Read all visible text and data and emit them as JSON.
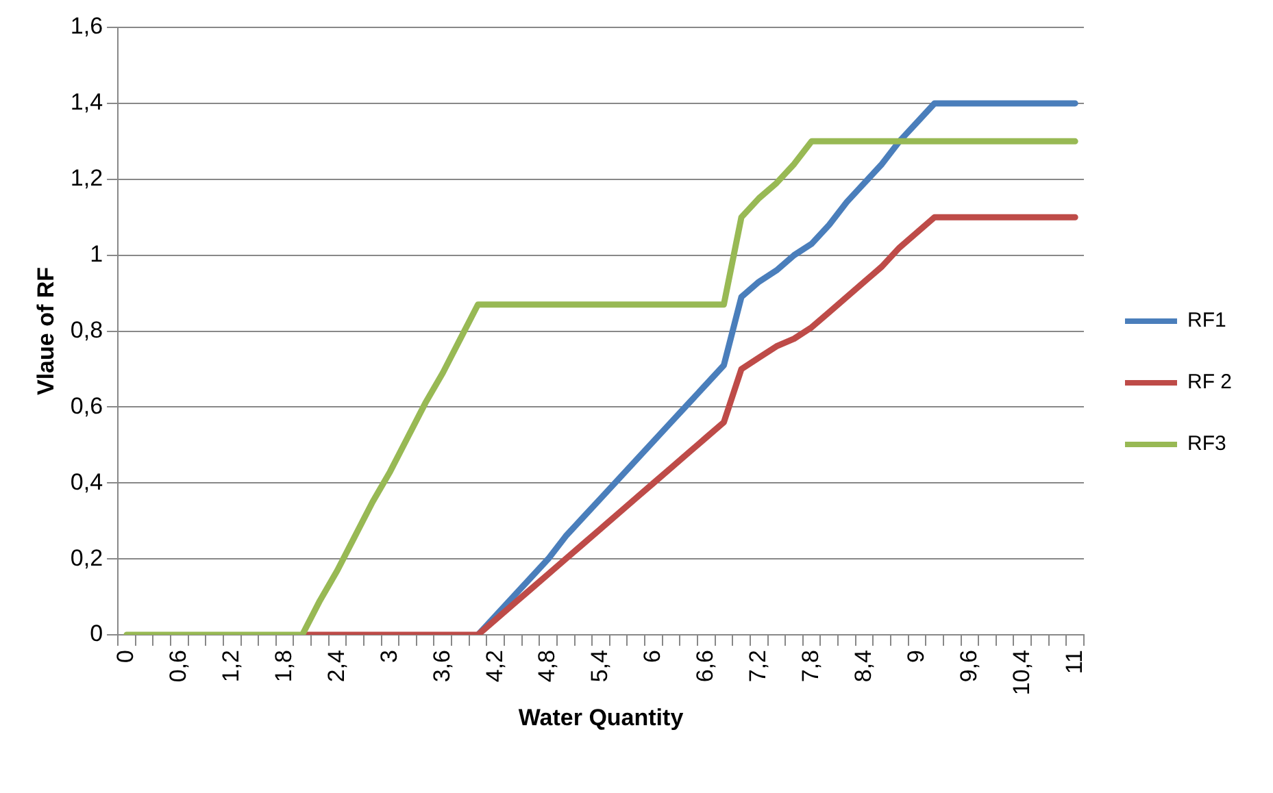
{
  "chart_data": {
    "type": "line",
    "xlabel": "Water Quantity",
    "ylabel": "Vlaue of RF",
    "categories": [
      "0",
      null,
      null,
      "0,6",
      null,
      null,
      "1,2",
      null,
      null,
      "1,8",
      null,
      null,
      "2,4",
      null,
      null,
      "3",
      null,
      null,
      "3,6",
      null,
      null,
      "4,2",
      null,
      null,
      "4,8",
      null,
      null,
      "5,4",
      null,
      null,
      "6",
      null,
      null,
      "6,6",
      null,
      null,
      "7,2",
      null,
      null,
      "7,8",
      null,
      null,
      "8,4",
      null,
      null,
      "9",
      null,
      null,
      "9,6",
      null,
      null,
      "10,4",
      null,
      null,
      "11"
    ],
    "series": [
      {
        "name": "RF1",
        "color": "#4a7ebb",
        "values": [
          null,
          null,
          null,
          null,
          null,
          null,
          null,
          null,
          null,
          null,
          null,
          null,
          null,
          null,
          null,
          null,
          null,
          null,
          null,
          null,
          0,
          0.05,
          0.1,
          0.15,
          0.2,
          0.26,
          0.31,
          0.36,
          0.41,
          0.46,
          0.51,
          0.56,
          0.61,
          0.66,
          0.71,
          0.89,
          0.93,
          0.96,
          1.0,
          1.03,
          1.08,
          1.14,
          1.19,
          1.24,
          1.3,
          1.35,
          1.4,
          1.4,
          1.4,
          1.4,
          1.4,
          1.4,
          1.4,
          1.4,
          1.4
        ]
      },
      {
        "name": "RF 2",
        "color": "#be4b48",
        "values": [
          null,
          null,
          null,
          null,
          null,
          null,
          null,
          null,
          null,
          null,
          0,
          0,
          0,
          0,
          0,
          0,
          0,
          0,
          0,
          0,
          0,
          0.04,
          0.08,
          0.12,
          0.16,
          0.2,
          0.24,
          0.28,
          0.32,
          0.36,
          0.4,
          0.44,
          0.48,
          0.52,
          0.56,
          0.7,
          0.73,
          0.76,
          0.78,
          0.81,
          0.85,
          0.89,
          0.93,
          0.97,
          1.02,
          1.06,
          1.1,
          1.1,
          1.1,
          1.1,
          1.1,
          1.1,
          1.1,
          1.1,
          1.1
        ]
      },
      {
        "name": "RF3",
        "color": "#98b954",
        "values": [
          0,
          0,
          0,
          0,
          0,
          0,
          0,
          0,
          0,
          0,
          0,
          0.09,
          0.17,
          0.26,
          0.35,
          0.43,
          0.52,
          0.61,
          0.69,
          0.78,
          0.87,
          0.87,
          0.87,
          0.87,
          0.87,
          0.87,
          0.87,
          0.87,
          0.87,
          0.87,
          0.87,
          0.87,
          0.87,
          0.87,
          0.87,
          1.1,
          1.15,
          1.19,
          1.24,
          1.3,
          1.3,
          1.3,
          1.3,
          1.3,
          1.3,
          1.3,
          1.3,
          1.3,
          1.3,
          1.3,
          1.3,
          1.3,
          1.3,
          1.3,
          1.3
        ]
      }
    ],
    "ylim": [
      0,
      1.6
    ],
    "yticks": [
      0,
      {
        "value": 0.2,
        "label": "0,2"
      },
      {
        "value": 0.4,
        "label": "0,4"
      },
      {
        "value": 0.6,
        "label": "0,6"
      },
      {
        "value": 0.8,
        "label": "0,8"
      },
      1,
      {
        "value": 1.2,
        "label": "1,2"
      },
      {
        "value": 1.4,
        "label": "1,4"
      },
      {
        "value": 1.6,
        "label": "1,6"
      }
    ],
    "grid": "y",
    "legend": "right",
    "marker": "none",
    "line_style": "solid"
  }
}
